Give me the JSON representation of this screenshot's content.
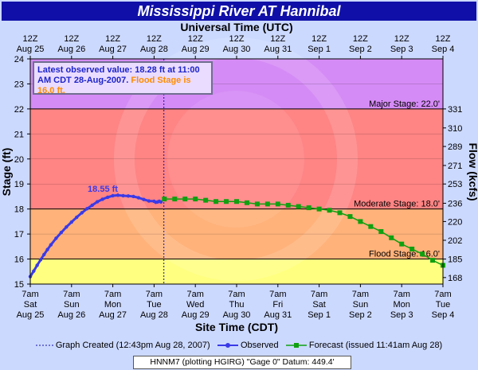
{
  "title": "Mississippi River  AT Hannibal",
  "top_axis_title": "Universal Time (UTC)",
  "bottom_axis_title": "Site Time (CDT)",
  "left_axis_title": "Stage (ft)",
  "right_axis_title": "Flow (kcfs)",
  "info_box": {
    "observed_text": "Latest observed value: 18.28 ft at 11:00 AM CDT 28-Aug-2007.",
    "flood_text": "Flood Stage is 16.0 ft."
  },
  "legend": {
    "created": "Graph Created (12:43pm Aug 28, 2007)",
    "observed": "Observed",
    "forecast": "Forecast (issued 11:41am Aug 28)"
  },
  "datum_text": "HNNM7 (plotting HGIRG)  \"Gage 0\" Datum: 449.4'",
  "colors": {
    "observed": "#3a3ae8",
    "forecast": "#10a010",
    "major": "#d58bf5",
    "moderate": "#ff8484",
    "minor": "#ffb27a",
    "action": "#ffff80",
    "title_bg": "#1010a8"
  },
  "chart_data": {
    "type": "line",
    "title": "Mississippi River  AT Hannibal",
    "xlabel": "Site Time (CDT)",
    "ylabel": "Stage (ft)",
    "ylabel_right": "Flow (kcfs)",
    "ylim": [
      15,
      24
    ],
    "xlim": [
      0,
      240
    ],
    "x_unit": "hours after 7am Sat Aug 25 (CDT)",
    "bottom_ticks": [
      {
        "day": "Sat",
        "date": "Aug 25",
        "time": "7am"
      },
      {
        "day": "Sun",
        "date": "Aug 26",
        "time": "7am"
      },
      {
        "day": "Mon",
        "date": "Aug 27",
        "time": "7am"
      },
      {
        "day": "Tue",
        "date": "Aug 28",
        "time": "7am"
      },
      {
        "day": "Wed",
        "date": "Aug 29",
        "time": "7am"
      },
      {
        "day": "Thu",
        "date": "Aug 30",
        "time": "7am"
      },
      {
        "day": "Fri",
        "date": "Aug 31",
        "time": "7am"
      },
      {
        "day": "Sat",
        "date": "Sep 1",
        "time": "7am"
      },
      {
        "day": "Sun",
        "date": "Sep 2",
        "time": "7am"
      },
      {
        "day": "Mon",
        "date": "Sep 3",
        "time": "7am"
      },
      {
        "day": "Tue",
        "date": "Sep 4",
        "time": "7am"
      }
    ],
    "top_ticks": [
      {
        "time": "12Z",
        "date": "Aug 25"
      },
      {
        "time": "12Z",
        "date": "Aug 26"
      },
      {
        "time": "12Z",
        "date": "Aug 27"
      },
      {
        "time": "12Z",
        "date": "Aug 28"
      },
      {
        "time": "12Z",
        "date": "Aug 29"
      },
      {
        "time": "12Z",
        "date": "Aug 30"
      },
      {
        "time": "12Z",
        "date": "Aug 31"
      },
      {
        "time": "12Z",
        "date": "Sep 1"
      },
      {
        "time": "12Z",
        "date": "Sep 2"
      },
      {
        "time": "12Z",
        "date": "Sep 3"
      },
      {
        "time": "12Z",
        "date": "Sep 4"
      }
    ],
    "left_ticks": [
      15,
      16,
      17,
      18,
      19,
      20,
      21,
      22,
      23,
      24
    ],
    "right_ticks": [
      {
        "stage": 15.26,
        "label": "168"
      },
      {
        "stage": 16.0,
        "label": "185"
      },
      {
        "stage": 16.75,
        "label": "202"
      },
      {
        "stage": 17.5,
        "label": "220"
      },
      {
        "stage": 18.23,
        "label": "236"
      },
      {
        "stage": 19.0,
        "label": "253"
      },
      {
        "stage": 19.74,
        "label": "271"
      },
      {
        "stage": 20.5,
        "label": "289"
      },
      {
        "stage": 21.24,
        "label": "310"
      },
      {
        "stage": 22.0,
        "label": "331"
      }
    ],
    "stage_bands": [
      {
        "name": "Major Stage",
        "label": "Major Stage: 22.0'",
        "from": 22,
        "to": 24,
        "color_key": "major"
      },
      {
        "name": "Moderate Stage",
        "label": "Moderate Stage: 18.0'",
        "from": 18,
        "to": 22,
        "color_key": "moderate"
      },
      {
        "name": "Flood Stage",
        "label": "Flood Stage: 16.0'",
        "from": 16,
        "to": 18,
        "color_key": "minor"
      },
      {
        "name": "Action",
        "label": "",
        "from": 15,
        "to": 16,
        "color_key": "action"
      }
    ],
    "created_at_hours": 77.7,
    "peak_label": "18.55 ft",
    "peak": {
      "x": 49,
      "y": 18.55
    },
    "series": [
      {
        "name": "Observed",
        "color_key": "observed",
        "x": [
          0,
          2,
          4,
          6,
          8,
          10,
          12,
          15,
          18,
          21,
          24,
          27,
          30,
          33,
          36,
          39,
          42,
          45,
          48,
          51,
          54,
          57,
          60,
          63,
          66,
          69,
          72,
          73,
          74,
          75,
          76
        ],
        "y": [
          15.3,
          15.52,
          15.75,
          15.97,
          16.18,
          16.38,
          16.57,
          16.83,
          17.06,
          17.28,
          17.48,
          17.67,
          17.85,
          18.01,
          18.15,
          18.29,
          18.39,
          18.47,
          18.53,
          18.55,
          18.53,
          18.52,
          18.5,
          18.45,
          18.38,
          18.32,
          18.31,
          18.27,
          18.28,
          18.31,
          18.28
        ]
      },
      {
        "name": "Forecast (issued 11:41am Aug 28)",
        "color_key": "forecast",
        "x": [
          78,
          84,
          90,
          96,
          102,
          108,
          114,
          120,
          126,
          132,
          138,
          144,
          150,
          156,
          162,
          168,
          174,
          180,
          186,
          192,
          198,
          204,
          210,
          216,
          222,
          228,
          234,
          240
        ],
        "y": [
          18.4,
          18.4,
          18.4,
          18.4,
          18.35,
          18.3,
          18.3,
          18.3,
          18.25,
          18.2,
          18.2,
          18.2,
          18.15,
          18.1,
          18.05,
          18.0,
          17.95,
          17.85,
          17.7,
          17.5,
          17.3,
          17.1,
          16.85,
          16.6,
          16.4,
          16.2,
          15.95,
          15.75
        ]
      }
    ]
  }
}
